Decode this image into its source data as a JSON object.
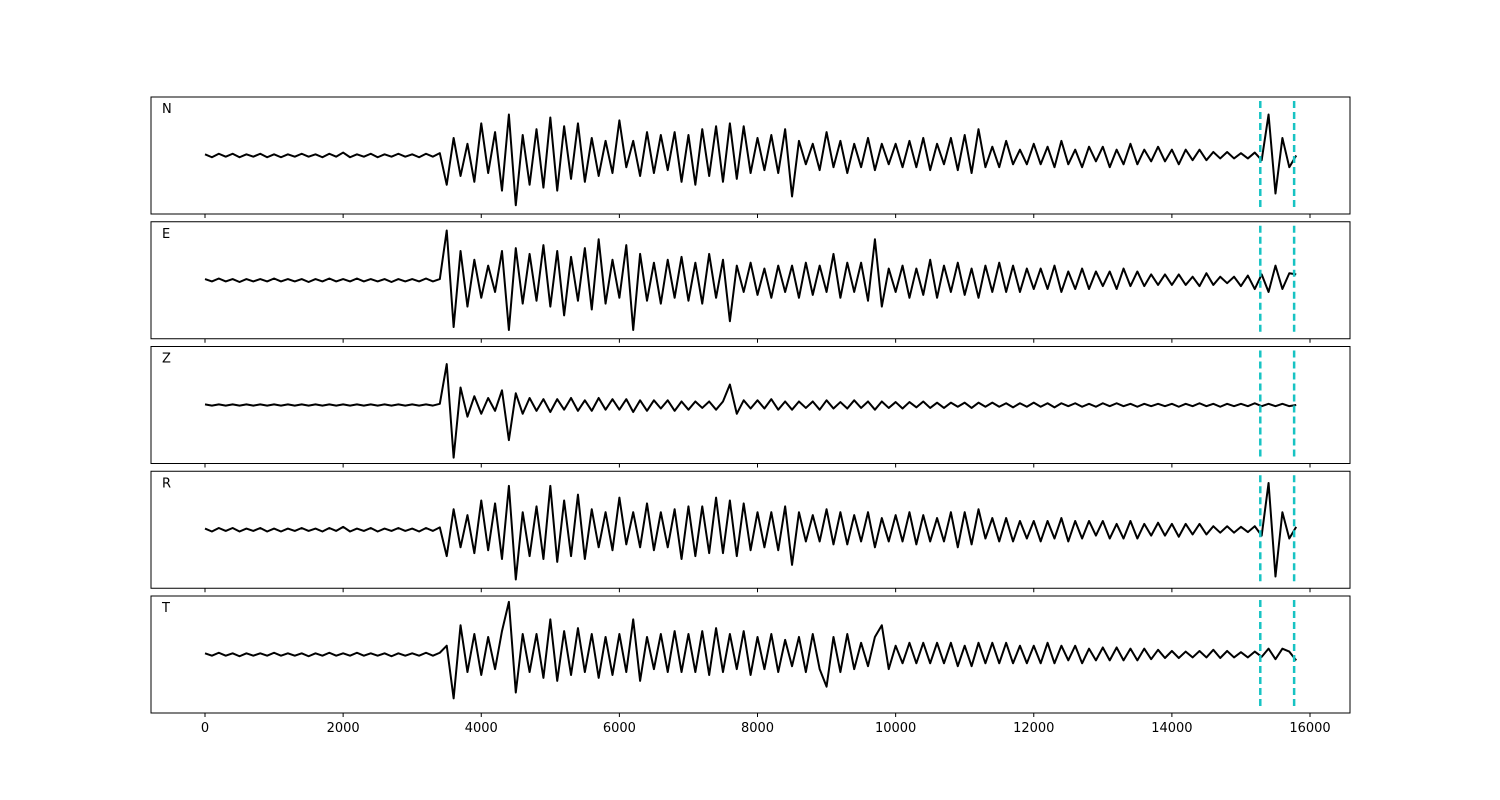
{
  "chart_data": {
    "type": "line",
    "subplots": true,
    "x": [
      0,
      100,
      200,
      300,
      400,
      500,
      600,
      700,
      800,
      900,
      1000,
      1100,
      1200,
      1300,
      1400,
      1500,
      1600,
      1700,
      1800,
      1900,
      2000,
      2100,
      2200,
      2300,
      2400,
      2500,
      2600,
      2700,
      2800,
      2900,
      3000,
      3100,
      3200,
      3300,
      3400,
      3500,
      3600,
      3700,
      3800,
      3900,
      4000,
      4100,
      4200,
      4300,
      4400,
      4500,
      4600,
      4700,
      4800,
      4900,
      5000,
      5100,
      5200,
      5300,
      5400,
      5500,
      5600,
      5700,
      5800,
      5900,
      6000,
      6100,
      6200,
      6300,
      6400,
      6500,
      6600,
      6700,
      6800,
      6900,
      7000,
      7100,
      7200,
      7300,
      7400,
      7500,
      7600,
      7700,
      7800,
      7900,
      8000,
      8100,
      8200,
      8300,
      8400,
      8500,
      8600,
      8700,
      8800,
      8900,
      9000,
      9100,
      9200,
      9300,
      9400,
      9500,
      9600,
      9700,
      9800,
      9900,
      10000,
      10100,
      10200,
      10300,
      10400,
      10500,
      10600,
      10700,
      10800,
      10900,
      11000,
      11100,
      11200,
      11300,
      11400,
      11500,
      11600,
      11700,
      11800,
      11900,
      12000,
      12100,
      12200,
      12300,
      12400,
      12500,
      12600,
      12700,
      12800,
      12900,
      13000,
      13100,
      13200,
      13300,
      13400,
      13500,
      13600,
      13700,
      13800,
      13900,
      14000,
      14100,
      14200,
      14300,
      14400,
      14500,
      14600,
      14700,
      14800,
      14900,
      15000,
      15100,
      15200,
      15300,
      15400,
      15500,
      15600,
      15700,
      15800
    ],
    "xlim": [
      -782,
      16579
    ],
    "xticks": [
      0,
      2000,
      4000,
      6000,
      8000,
      10000,
      12000,
      14000,
      16000
    ],
    "ylim": [
      -1,
      1
    ],
    "vlines": [
      15280,
      15770
    ],
    "vline_color": "#17c3c3",
    "series": [
      {
        "name": "N",
        "color": "#000000",
        "values": [
          0.02,
          -0.03,
          0.03,
          -0.02,
          0.03,
          -0.03,
          0.02,
          -0.02,
          0.03,
          -0.03,
          0.02,
          -0.03,
          0.02,
          -0.02,
          0.03,
          -0.02,
          0.02,
          -0.03,
          0.03,
          -0.02,
          0.05,
          -0.03,
          0.02,
          -0.02,
          0.03,
          -0.03,
          0.02,
          -0.02,
          0.03,
          -0.02,
          0.02,
          -0.03,
          0.03,
          -0.02,
          0.04,
          -0.5,
          0.3,
          -0.35,
          0.2,
          -0.45,
          0.55,
          -0.3,
          0.4,
          -0.6,
          0.7,
          -0.85,
          0.35,
          -0.5,
          0.45,
          -0.55,
          0.65,
          -0.6,
          0.5,
          -0.4,
          0.55,
          -0.45,
          0.3,
          -0.35,
          0.25,
          -0.3,
          0.6,
          -0.2,
          0.25,
          -0.35,
          0.4,
          -0.3,
          0.35,
          -0.25,
          0.4,
          -0.45,
          0.35,
          -0.5,
          0.45,
          -0.35,
          0.5,
          -0.45,
          0.55,
          -0.4,
          0.5,
          -0.3,
          0.3,
          -0.25,
          0.35,
          -0.3,
          0.45,
          -0.7,
          0.25,
          -0.15,
          0.2,
          -0.25,
          0.4,
          -0.2,
          0.25,
          -0.3,
          0.2,
          -0.2,
          0.3,
          -0.25,
          0.2,
          -0.15,
          0.2,
          -0.2,
          0.25,
          -0.2,
          0.3,
          -0.25,
          0.2,
          -0.15,
          0.3,
          -0.25,
          0.35,
          -0.3,
          0.45,
          -0.2,
          0.15,
          -0.2,
          0.25,
          -0.15,
          0.1,
          -0.15,
          0.2,
          -0.15,
          0.15,
          -0.2,
          0.25,
          -0.15,
          0.1,
          -0.2,
          0.15,
          -0.1,
          0.15,
          -0.2,
          0.1,
          -0.15,
          0.2,
          -0.15,
          0.1,
          -0.1,
          0.15,
          -0.1,
          0.1,
          -0.15,
          0.1,
          -0.08,
          0.1,
          -0.08,
          0.06,
          -0.05,
          0.06,
          -0.05,
          0.04,
          -0.05,
          0.05,
          -0.08,
          0.7,
          -0.65,
          0.3,
          -0.2,
          0.0
        ]
      },
      {
        "name": "E",
        "color": "#000000",
        "values": [
          0.02,
          -0.02,
          0.03,
          -0.02,
          0.02,
          -0.03,
          0.02,
          -0.02,
          0.02,
          -0.02,
          0.03,
          -0.02,
          0.02,
          -0.02,
          0.02,
          -0.03,
          0.02,
          -0.02,
          0.03,
          -0.02,
          0.02,
          -0.02,
          0.03,
          -0.02,
          0.02,
          -0.02,
          0.02,
          -0.03,
          0.02,
          -0.02,
          0.02,
          -0.02,
          0.03,
          -0.02,
          0.02,
          0.85,
          -0.8,
          0.5,
          -0.45,
          0.35,
          -0.3,
          0.25,
          -0.2,
          0.5,
          -0.85,
          0.55,
          -0.4,
          0.45,
          -0.35,
          0.6,
          -0.45,
          0.5,
          -0.6,
          0.4,
          -0.35,
          0.55,
          -0.5,
          0.7,
          -0.4,
          0.35,
          -0.3,
          0.6,
          -0.85,
          0.45,
          -0.35,
          0.3,
          -0.4,
          0.35,
          -0.3,
          0.4,
          -0.35,
          0.3,
          -0.4,
          0.45,
          -0.3,
          0.35,
          -0.7,
          0.25,
          -0.2,
          0.3,
          -0.25,
          0.2,
          -0.3,
          0.25,
          -0.2,
          0.25,
          -0.3,
          0.3,
          -0.25,
          0.25,
          -0.2,
          0.45,
          -0.3,
          0.3,
          -0.2,
          0.3,
          -0.35,
          0.7,
          -0.45,
          0.2,
          -0.2,
          0.25,
          -0.3,
          0.2,
          -0.25,
          0.35,
          -0.3,
          0.25,
          -0.2,
          0.3,
          -0.25,
          0.2,
          -0.3,
          0.25,
          -0.2,
          0.3,
          -0.2,
          0.25,
          -0.2,
          0.2,
          -0.15,
          0.2,
          -0.15,
          0.25,
          -0.2,
          0.15,
          -0.15,
          0.2,
          -0.15,
          0.15,
          -0.1,
          0.15,
          -0.15,
          0.2,
          -0.1,
          0.15,
          -0.1,
          0.1,
          -0.08,
          0.1,
          -0.08,
          0.1,
          -0.08,
          0.06,
          -0.1,
          0.12,
          -0.08,
          0.06,
          -0.05,
          0.06,
          -0.1,
          0.08,
          -0.15,
          0.1,
          -0.2,
          0.25,
          -0.15,
          0.12,
          0.1
        ]
      },
      {
        "name": "Z",
        "color": "#000000",
        "values": [
          0.01,
          -0.01,
          0.01,
          -0.01,
          0.01,
          -0.01,
          0.01,
          -0.01,
          0.01,
          -0.01,
          0.01,
          -0.01,
          0.01,
          -0.01,
          0.01,
          -0.01,
          0.01,
          -0.01,
          0.01,
          -0.01,
          0.01,
          -0.01,
          0.01,
          -0.01,
          0.01,
          -0.01,
          0.01,
          -0.01,
          0.01,
          -0.01,
          0.01,
          -0.01,
          0.01,
          -0.01,
          0.02,
          0.7,
          -0.9,
          0.3,
          -0.2,
          0.15,
          -0.15,
          0.12,
          -0.1,
          0.25,
          -0.6,
          0.2,
          -0.15,
          0.12,
          -0.1,
          0.1,
          -0.12,
          0.1,
          -0.08,
          0.12,
          -0.1,
          0.08,
          -0.1,
          0.12,
          -0.08,
          0.1,
          -0.08,
          0.1,
          -0.12,
          0.08,
          -0.1,
          0.08,
          -0.06,
          0.08,
          -0.1,
          0.06,
          -0.08,
          0.06,
          -0.05,
          0.06,
          -0.08,
          0.06,
          0.35,
          -0.15,
          0.08,
          -0.06,
          0.08,
          -0.06,
          0.1,
          -0.08,
          0.06,
          -0.08,
          0.06,
          -0.05,
          0.06,
          -0.08,
          0.08,
          -0.06,
          0.05,
          -0.06,
          0.08,
          -0.05,
          0.06,
          -0.08,
          0.06,
          -0.05,
          0.05,
          -0.06,
          0.05,
          -0.04,
          0.06,
          -0.05,
          0.04,
          -0.05,
          0.04,
          -0.03,
          0.04,
          -0.05,
          0.04,
          -0.03,
          0.04,
          -0.03,
          0.03,
          -0.04,
          0.03,
          -0.03,
          0.04,
          -0.03,
          0.03,
          -0.04,
          0.03,
          -0.02,
          0.03,
          -0.03,
          0.02,
          -0.03,
          0.03,
          -0.02,
          0.03,
          -0.02,
          0.02,
          -0.03,
          0.02,
          -0.02,
          0.02,
          -0.02,
          0.02,
          -0.03,
          0.02,
          -0.02,
          0.03,
          -0.02,
          0.02,
          -0.03,
          0.02,
          -0.02,
          0.02,
          -0.02,
          0.03,
          -0.02,
          0.02,
          -0.02,
          0.02,
          -0.02,
          0.0
        ]
      },
      {
        "name": "R",
        "color": "#000000",
        "values": [
          0.02,
          -0.03,
          0.03,
          -0.02,
          0.03,
          -0.03,
          0.02,
          -0.02,
          0.03,
          -0.03,
          0.02,
          -0.03,
          0.02,
          -0.02,
          0.03,
          -0.02,
          0.02,
          -0.03,
          0.03,
          -0.02,
          0.05,
          -0.03,
          0.02,
          -0.02,
          0.03,
          -0.03,
          0.02,
          -0.02,
          0.03,
          -0.02,
          0.02,
          -0.03,
          0.03,
          -0.02,
          0.04,
          -0.45,
          0.35,
          -0.3,
          0.25,
          -0.4,
          0.5,
          -0.35,
          0.45,
          -0.5,
          0.75,
          -0.85,
          0.3,
          -0.45,
          0.4,
          -0.5,
          0.75,
          -0.55,
          0.5,
          -0.45,
          0.6,
          -0.5,
          0.35,
          -0.3,
          0.3,
          -0.35,
          0.55,
          -0.25,
          0.3,
          -0.3,
          0.45,
          -0.35,
          0.3,
          -0.3,
          0.35,
          -0.5,
          0.4,
          -0.45,
          0.4,
          -0.4,
          0.55,
          -0.4,
          0.5,
          -0.45,
          0.45,
          -0.35,
          0.3,
          -0.3,
          0.3,
          -0.35,
          0.4,
          -0.6,
          0.3,
          -0.2,
          0.25,
          -0.2,
          0.35,
          -0.25,
          0.3,
          -0.25,
          0.25,
          -0.2,
          0.3,
          -0.3,
          0.2,
          -0.2,
          0.25,
          -0.2,
          0.3,
          -0.25,
          0.25,
          -0.2,
          0.2,
          -0.2,
          0.3,
          -0.3,
          0.3,
          -0.25,
          0.35,
          -0.15,
          0.2,
          -0.2,
          0.2,
          -0.2,
          0.15,
          -0.15,
          0.15,
          -0.2,
          0.15,
          -0.15,
          0.2,
          -0.2,
          0.15,
          -0.15,
          0.15,
          -0.1,
          0.15,
          -0.15,
          0.1,
          -0.15,
          0.15,
          -0.15,
          0.1,
          -0.1,
          0.12,
          -0.1,
          0.1,
          -0.12,
          0.1,
          -0.08,
          0.1,
          -0.08,
          0.06,
          -0.05,
          0.06,
          -0.05,
          0.05,
          -0.04,
          0.06,
          -0.1,
          0.8,
          -0.8,
          0.3,
          -0.15,
          0.05
        ]
      },
      {
        "name": "T",
        "color": "#000000",
        "values": [
          0.02,
          -0.02,
          0.03,
          -0.02,
          0.02,
          -0.03,
          0.02,
          -0.02,
          0.02,
          -0.02,
          0.03,
          -0.02,
          0.02,
          -0.02,
          0.02,
          -0.03,
          0.02,
          -0.02,
          0.03,
          -0.02,
          0.02,
          -0.02,
          0.03,
          -0.02,
          0.02,
          -0.02,
          0.02,
          -0.03,
          0.02,
          -0.02,
          0.02,
          -0.02,
          0.03,
          -0.02,
          0.03,
          0.15,
          -0.75,
          0.5,
          -0.3,
          0.35,
          -0.35,
          0.3,
          -0.25,
          0.4,
          0.9,
          -0.65,
          0.35,
          -0.3,
          0.35,
          -0.4,
          0.6,
          -0.45,
          0.4,
          -0.35,
          0.45,
          -0.3,
          0.35,
          -0.4,
          0.3,
          -0.35,
          0.35,
          -0.3,
          0.6,
          -0.45,
          0.3,
          -0.25,
          0.35,
          -0.3,
          0.4,
          -0.3,
          0.35,
          -0.3,
          0.4,
          -0.35,
          0.45,
          -0.3,
          0.35,
          -0.25,
          0.4,
          -0.35,
          0.3,
          -0.25,
          0.35,
          -0.3,
          0.25,
          -0.2,
          0.3,
          -0.3,
          0.35,
          -0.25,
          -0.55,
          0.3,
          -0.3,
          0.35,
          -0.25,
          0.2,
          -0.2,
          0.3,
          0.5,
          -0.25,
          0.15,
          -0.15,
          0.2,
          -0.15,
          0.2,
          -0.15,
          0.2,
          -0.15,
          0.2,
          -0.2,
          0.15,
          -0.2,
          0.2,
          -0.15,
          0.2,
          -0.15,
          0.2,
          -0.15,
          0.15,
          -0.15,
          0.15,
          -0.15,
          0.2,
          -0.15,
          0.15,
          -0.1,
          0.15,
          -0.15,
          0.1,
          -0.1,
          0.12,
          -0.1,
          0.12,
          -0.1,
          0.1,
          -0.1,
          0.1,
          -0.08,
          0.08,
          -0.06,
          0.06,
          -0.06,
          0.05,
          -0.05,
          0.06,
          -0.05,
          0.08,
          -0.06,
          0.06,
          -0.05,
          0.04,
          -0.05,
          0.05,
          -0.04,
          0.1,
          -0.08,
          0.1,
          0.05,
          -0.1
        ]
      }
    ]
  }
}
